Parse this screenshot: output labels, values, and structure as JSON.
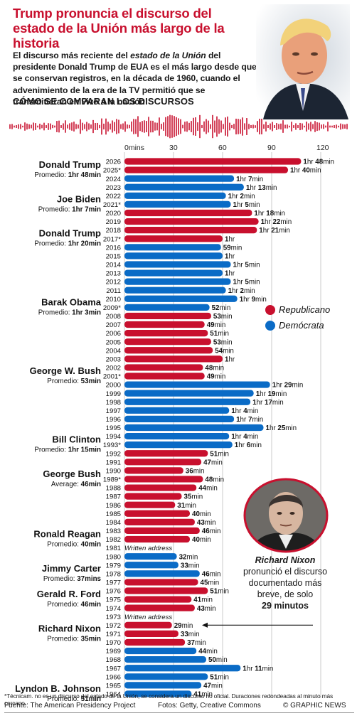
{
  "header": {
    "title": "Trump pronuncia el discurso del estado de la Unión más largo de la historia",
    "intro_part1": "El discurso más reciente del ",
    "intro_em": "estado de la Unión",
    "intro_part2": " del presidente Donald Trump de EUA es el más largo desde que se conservan registros, en la década de 1960, cuando el advenimiento de la era de la TV permitió que se transmitieran en vivo a la nación",
    "subhead": "CÓMO SE COMPARAN LOS DISCURSOS"
  },
  "legend": {
    "republican": "Republicano",
    "democrat": "Demócrata"
  },
  "colors": {
    "republican": "#c8102e",
    "democrat": "#0a6bc6",
    "title": "#c8102e",
    "waveform": "#c8102e"
  },
  "annotation": {
    "name": "Richard Nixon",
    "line1": "pronunció el discurso",
    "line2": "documentado más",
    "line3": "breve, de solo",
    "duration": "29 minutos"
  },
  "presidents": [
    {
      "name": "Donald Trump",
      "avg_label": "Promedio: ",
      "avg": "1hr 48min",
      "year": 2025
    },
    {
      "name": "Joe Biden",
      "avg_label": "Promedio: ",
      "avg": "1hr 7min",
      "year": 2021
    },
    {
      "name": "Donald Trump",
      "avg_label": "Promedio: ",
      "avg": "1hr 20min",
      "year": 2017
    },
    {
      "name": "Barak Obama",
      "avg_label": "Promedio: ",
      "avg": "1hr 3min",
      "year": 2009
    },
    {
      "name": "George W. Bush",
      "avg_label": "Promedio: ",
      "avg": "53min",
      "year": 2001
    },
    {
      "name": "Bill Clinton",
      "avg_label": "Promedio: ",
      "avg": "1hr 15min",
      "year": 1993
    },
    {
      "name": "George Bush",
      "avg_label": "Average: ",
      "avg": "46min",
      "year": 1989
    },
    {
      "name": "Ronald Reagan",
      "avg_label": "Promedio: ",
      "avg": "40min",
      "year": 1982
    },
    {
      "name": "Jimmy Carter",
      "avg_label": "Promedio: ",
      "avg": "37mins",
      "year": 1978
    },
    {
      "name": "Gerald R. Ford",
      "avg_label": "Promedio: ",
      "avg": "46min",
      "year": 1975
    },
    {
      "name": "Richard Nixon",
      "avg_label": "Promedio: ",
      "avg": "35min",
      "year": 1971
    },
    {
      "name": "Lyndon B. Johnson",
      "avg_label": "Promedio: ",
      "avg": "51min",
      "year": 1964
    }
  ],
  "chart_data": {
    "type": "bar",
    "orientation": "horizontal",
    "xlabel": "",
    "ylabel": "",
    "xlim": [
      0,
      130
    ],
    "x_ticks": [
      0,
      30,
      60,
      90,
      120
    ],
    "x_tick_labels": [
      "0mins",
      "30",
      "60",
      "90",
      "120"
    ],
    "grid": true,
    "legend_position": "right",
    "years": [
      {
        "year": "2026",
        "minutes": 108,
        "party": "R",
        "label": "1hr 48min"
      },
      {
        "year": "2025*",
        "minutes": 100,
        "party": "R",
        "label": "1hr 40min"
      },
      {
        "year": "2024",
        "minutes": 67,
        "party": "D",
        "label": "1hr 7min"
      },
      {
        "year": "2023",
        "minutes": 73,
        "party": "D",
        "label": "1hr 13min"
      },
      {
        "year": "2022",
        "minutes": 62,
        "party": "D",
        "label": "1hr 2min"
      },
      {
        "year": "2021*",
        "minutes": 65,
        "party": "D",
        "label": "1hr 5min"
      },
      {
        "year": "2020",
        "minutes": 78,
        "party": "R",
        "label": "1hr 18min"
      },
      {
        "year": "2019",
        "minutes": 82,
        "party": "R",
        "label": "1hr 22min"
      },
      {
        "year": "2018",
        "minutes": 81,
        "party": "R",
        "label": "1hr 21min"
      },
      {
        "year": "2017*",
        "minutes": 60,
        "party": "R",
        "label": "1hr"
      },
      {
        "year": "2016",
        "minutes": 59,
        "party": "D",
        "label": "59min"
      },
      {
        "year": "2015",
        "minutes": 60,
        "party": "D",
        "label": "1hr"
      },
      {
        "year": "2014",
        "minutes": 65,
        "party": "D",
        "label": "1hr 5min"
      },
      {
        "year": "2013",
        "minutes": 60,
        "party": "D",
        "label": "1hr"
      },
      {
        "year": "2012",
        "minutes": 65,
        "party": "D",
        "label": "1hr 5min"
      },
      {
        "year": "2011",
        "minutes": 62,
        "party": "D",
        "label": "1hr 2min"
      },
      {
        "year": "2010",
        "minutes": 69,
        "party": "D",
        "label": "1hr 9min"
      },
      {
        "year": "2009*",
        "minutes": 52,
        "party": "D",
        "label": "52min"
      },
      {
        "year": "2008",
        "minutes": 53,
        "party": "R",
        "label": "53min"
      },
      {
        "year": "2007",
        "minutes": 49,
        "party": "R",
        "label": "49min"
      },
      {
        "year": "2006",
        "minutes": 51,
        "party": "R",
        "label": "51min"
      },
      {
        "year": "2005",
        "minutes": 53,
        "party": "R",
        "label": "53min"
      },
      {
        "year": "2004",
        "minutes": 54,
        "party": "R",
        "label": "54min"
      },
      {
        "year": "2003",
        "minutes": 60,
        "party": "R",
        "label": "1hr"
      },
      {
        "year": "2002",
        "minutes": 48,
        "party": "R",
        "label": "48min"
      },
      {
        "year": "2001*",
        "minutes": 49,
        "party": "R",
        "label": "49min"
      },
      {
        "year": "2000",
        "minutes": 89,
        "party": "D",
        "label": "1hr 29min"
      },
      {
        "year": "1999",
        "minutes": 79,
        "party": "D",
        "label": "1hr 19min"
      },
      {
        "year": "1998",
        "minutes": 77,
        "party": "D",
        "label": "1hr 17min"
      },
      {
        "year": "1997",
        "minutes": 64,
        "party": "D",
        "label": "1hr 4min"
      },
      {
        "year": "1996",
        "minutes": 67,
        "party": "D",
        "label": "1hr 7min"
      },
      {
        "year": "1995",
        "minutes": 85,
        "party": "D",
        "label": "1hr 25min"
      },
      {
        "year": "1994",
        "minutes": 64,
        "party": "D",
        "label": "1hr 4min"
      },
      {
        "year": "1993*",
        "minutes": 66,
        "party": "D",
        "label": "1hr 6min"
      },
      {
        "year": "1992",
        "minutes": 51,
        "party": "R",
        "label": "51min"
      },
      {
        "year": "1991",
        "minutes": 47,
        "party": "R",
        "label": "47min"
      },
      {
        "year": "1990",
        "minutes": 36,
        "party": "R",
        "label": "36min"
      },
      {
        "year": "1989*",
        "minutes": 48,
        "party": "R",
        "label": "48min"
      },
      {
        "year": "1988",
        "minutes": 44,
        "party": "R",
        "label": "44min"
      },
      {
        "year": "1987",
        "minutes": 35,
        "party": "R",
        "label": "35min"
      },
      {
        "year": "1986",
        "minutes": 31,
        "party": "R",
        "label": "31min"
      },
      {
        "year": "1985",
        "minutes": 40,
        "party": "R",
        "label": "40min"
      },
      {
        "year": "1984",
        "minutes": 43,
        "party": "R",
        "label": "43min"
      },
      {
        "year": "1983",
        "minutes": 46,
        "party": "R",
        "label": "46min"
      },
      {
        "year": "1982",
        "minutes": 40,
        "party": "R",
        "label": "40min"
      },
      {
        "year": "1981",
        "minutes": null,
        "party": "R",
        "label": "Written address"
      },
      {
        "year": "1980",
        "minutes": 32,
        "party": "D",
        "label": "32min"
      },
      {
        "year": "1979",
        "minutes": 33,
        "party": "D",
        "label": "33min"
      },
      {
        "year": "1978",
        "minutes": 46,
        "party": "D",
        "label": "46min"
      },
      {
        "year": "1977",
        "minutes": 45,
        "party": "R",
        "label": "45min"
      },
      {
        "year": "1976",
        "minutes": 51,
        "party": "R",
        "label": "51min"
      },
      {
        "year": "1975",
        "minutes": 41,
        "party": "R",
        "label": "41min"
      },
      {
        "year": "1974",
        "minutes": 43,
        "party": "R",
        "label": "43min"
      },
      {
        "year": "1973",
        "minutes": null,
        "party": "R",
        "label": "Written address"
      },
      {
        "year": "1972",
        "minutes": 29,
        "party": "R",
        "label": "29min"
      },
      {
        "year": "1971",
        "minutes": 33,
        "party": "R",
        "label": "33min"
      },
      {
        "year": "1970",
        "minutes": 37,
        "party": "R",
        "label": "37min"
      },
      {
        "year": "1969",
        "minutes": 44,
        "party": "D",
        "label": "44min"
      },
      {
        "year": "1968",
        "minutes": 50,
        "party": "D",
        "label": "50min"
      },
      {
        "year": "1967",
        "minutes": 71,
        "party": "D",
        "label": "1hr 11min"
      },
      {
        "year": "1966",
        "minutes": 51,
        "party": "D",
        "label": "51min"
      },
      {
        "year": "1965",
        "minutes": 47,
        "party": "D",
        "label": "47min"
      },
      {
        "year": "1964",
        "minutes": 41,
        "party": "D",
        "label": "41min"
      }
    ]
  },
  "footer": {
    "footnote": "*Técnicam. no es un discurso del estado de la Unión, se considera un discurso no oficial. Duraciones redondeadas al minuto más cercano",
    "source": "Fuente: The American Presidency Project",
    "credits": "Fotos: Getty, Creative Commons",
    "agency": "© GRAPHIC NEWS"
  }
}
